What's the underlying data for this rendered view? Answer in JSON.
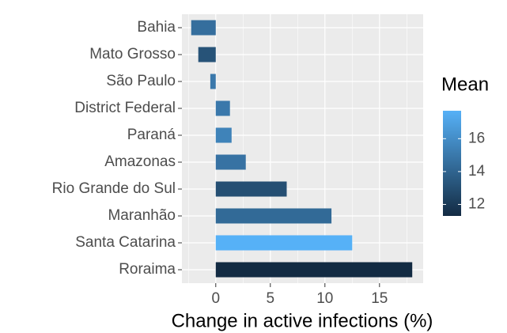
{
  "chart_data": {
    "type": "bar",
    "orientation": "horizontal",
    "x_label": "Change in active infections (%)",
    "categories": [
      "Bahia",
      "Mato Grosso",
      "São Paulo",
      "District Federal",
      "Paraná",
      "Amazonas",
      "Rio Grande do Sul",
      "Maranhão",
      "Santa Catarina",
      "Roraima"
    ],
    "values": [
      -2.25,
      -1.6,
      -0.5,
      1.3,
      1.45,
      2.75,
      6.5,
      10.6,
      12.5,
      18.0
    ],
    "color_values": [
      14.5,
      13.2,
      15.0,
      15.0,
      15.5,
      14.7,
      13.0,
      14.3,
      17.7,
      11.3
    ],
    "xlim": [
      -3.1,
      19.0
    ],
    "xticks": [
      0,
      5,
      10,
      15
    ],
    "grid": true,
    "legend": {
      "title": "Mean",
      "low_color": "#132B43",
      "high_color": "#56B1F7",
      "lim": [
        11.3,
        17.7
      ],
      "ticks": [
        12,
        14,
        16
      ]
    }
  }
}
